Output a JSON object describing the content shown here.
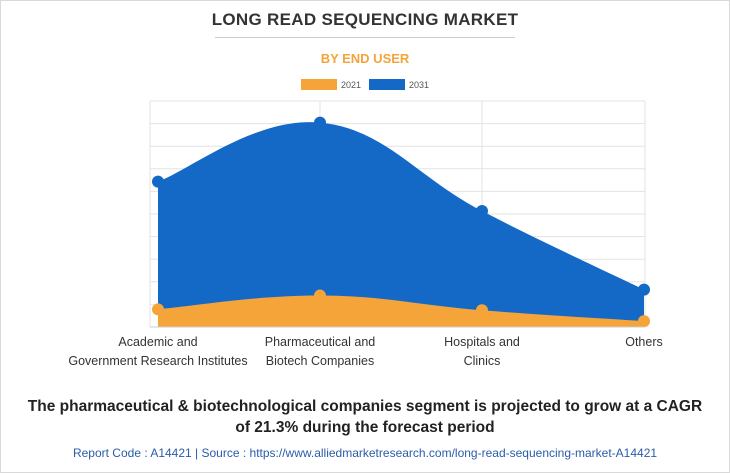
{
  "header": {
    "title": "LONG READ SEQUENCING MARKET",
    "subtitle": "BY END USER"
  },
  "colors": {
    "series_2021": "#f5a43a",
    "series_2031": "#1469c7",
    "grid": "#e3e3e3",
    "subtitle": "#f5a43a"
  },
  "chart_data": {
    "type": "area",
    "title": "LONG READ SEQUENCING MARKET",
    "subtitle": "BY END USER",
    "categories": [
      [
        "Academic and",
        "Government Research Institutes"
      ],
      [
        "Pharmaceutical and",
        "Biotech Companies"
      ],
      [
        "Hospitals and",
        "Clinics"
      ],
      [
        "Others"
      ]
    ],
    "series": [
      {
        "name": "2031",
        "values": [
          148,
          208,
          118,
          38
        ]
      },
      {
        "name": "2021",
        "values": [
          18,
          32,
          17,
          6
        ]
      }
    ],
    "ylim": [
      0,
      230
    ],
    "grid": true,
    "legend_position": "top-center",
    "xlabel": "",
    "ylabel": ""
  },
  "footer": {
    "statement_line1": "The pharmaceutical & biotechnological companies segment is projected to grow at a CAGR",
    "statement_line2": "of 21.3% during the forecast period",
    "source": "Report Code : A14421  |  Source : https://www.alliedmarketresearch.com/long-read-sequencing-market-A14421"
  }
}
